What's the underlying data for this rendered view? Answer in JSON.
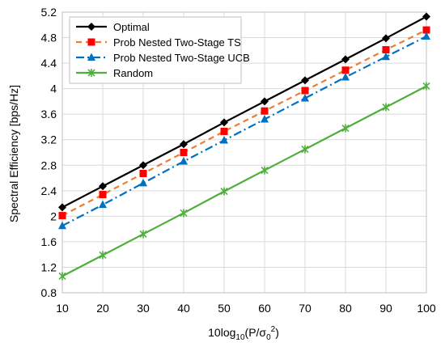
{
  "chart_data": {
    "type": "line",
    "title": "",
    "xlabel_parts": {
      "pre": "10log",
      "sub1": "10",
      "mid": "(P/σ",
      "sub2": "0",
      "sup": "2",
      "post": ")"
    },
    "ylabel": "Spectral Efficiency [bps/Hz]",
    "x": [
      10,
      20,
      30,
      40,
      50,
      60,
      70,
      80,
      90,
      100
    ],
    "xlim": [
      10,
      100
    ],
    "ylim": [
      0.8,
      5.2
    ],
    "xticks": [
      "10",
      "20",
      "30",
      "40",
      "50",
      "60",
      "70",
      "80",
      "90",
      "100"
    ],
    "yticks": [
      "0.8",
      "1.2",
      "1.6",
      "2",
      "2.4",
      "2.8",
      "3.2",
      "3.6",
      "4",
      "4.4",
      "4.8",
      "5.2"
    ],
    "grid": true,
    "legend_position": "top-left",
    "series": [
      {
        "name": "Optimal",
        "color": "#000000",
        "dash": "solid",
        "marker": "diamond",
        "values": [
          2.14,
          2.47,
          2.8,
          3.13,
          3.47,
          3.8,
          4.13,
          4.46,
          4.79,
          5.13
        ]
      },
      {
        "name": "Prob Nested Two-Stage TS",
        "color": "#ED7D31",
        "marker_color": "#FF0000",
        "dash": "dashed",
        "marker": "square",
        "values": [
          2.01,
          2.34,
          2.67,
          3.0,
          3.33,
          3.65,
          3.97,
          4.29,
          4.61,
          4.92
        ]
      },
      {
        "name": "Prob Nested Two-Stage UCB",
        "color": "#0070C0",
        "dash": "dashdot",
        "marker": "triangle",
        "values": [
          1.85,
          2.18,
          2.52,
          2.86,
          3.19,
          3.52,
          3.85,
          4.18,
          4.5,
          4.82
        ]
      },
      {
        "name": "Random",
        "color": "#4EAF3A",
        "dash": "solid",
        "marker": "star",
        "values": [
          1.06,
          1.39,
          1.72,
          2.05,
          2.39,
          2.72,
          3.05,
          3.38,
          3.71,
          4.04
        ]
      }
    ]
  }
}
